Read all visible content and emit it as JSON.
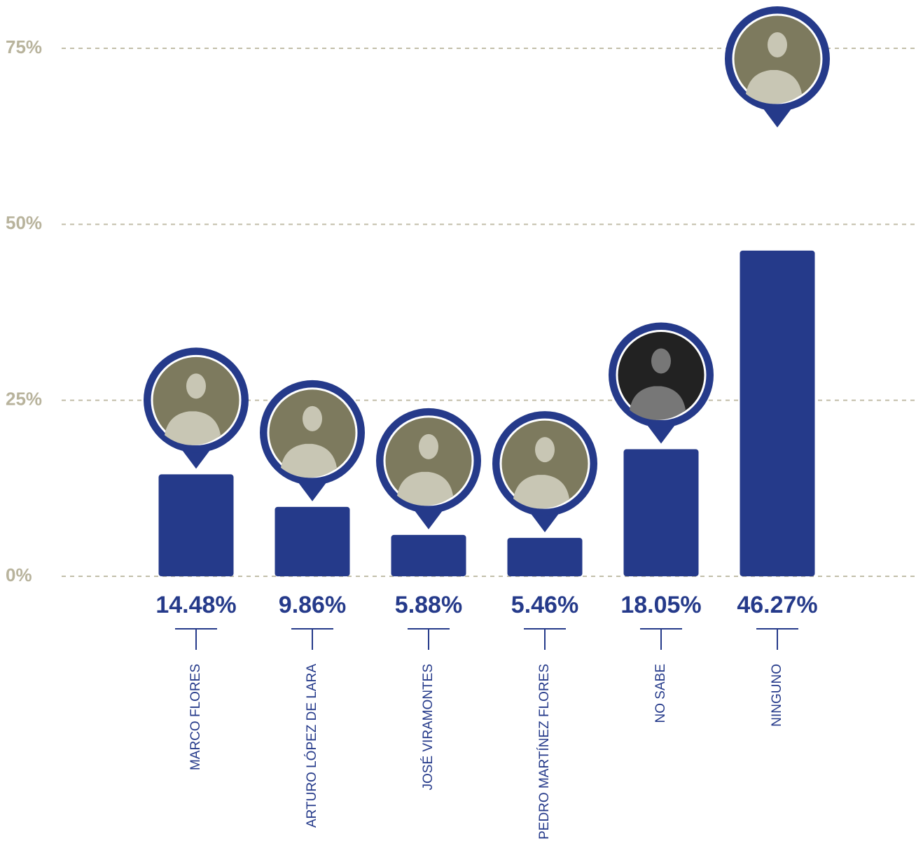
{
  "chart_data": {
    "type": "bar",
    "categories": [
      "MARCO FLORES",
      "ARTURO LÓPEZ DE LARA",
      "JOSÉ VIRAMONTES",
      "PEDRO MARTÍNEZ FLORES",
      "NO SABE",
      "NINGUNO"
    ],
    "values": [
      14.48,
      9.86,
      5.88,
      5.46,
      18.05,
      46.27
    ],
    "value_labels": [
      "14.48%",
      "9.86%",
      "5.88%",
      "5.46%",
      "18.05%",
      "46.27%"
    ],
    "color": "#253a8a",
    "ylim": [
      0,
      75
    ],
    "yticks": [
      {
        "value": 0,
        "label": "0%"
      },
      {
        "value": 25,
        "label": "25%"
      },
      {
        "value": 50,
        "label": "50%"
      },
      {
        "value": 75,
        "label": "75%"
      }
    ],
    "grid": true
  }
}
